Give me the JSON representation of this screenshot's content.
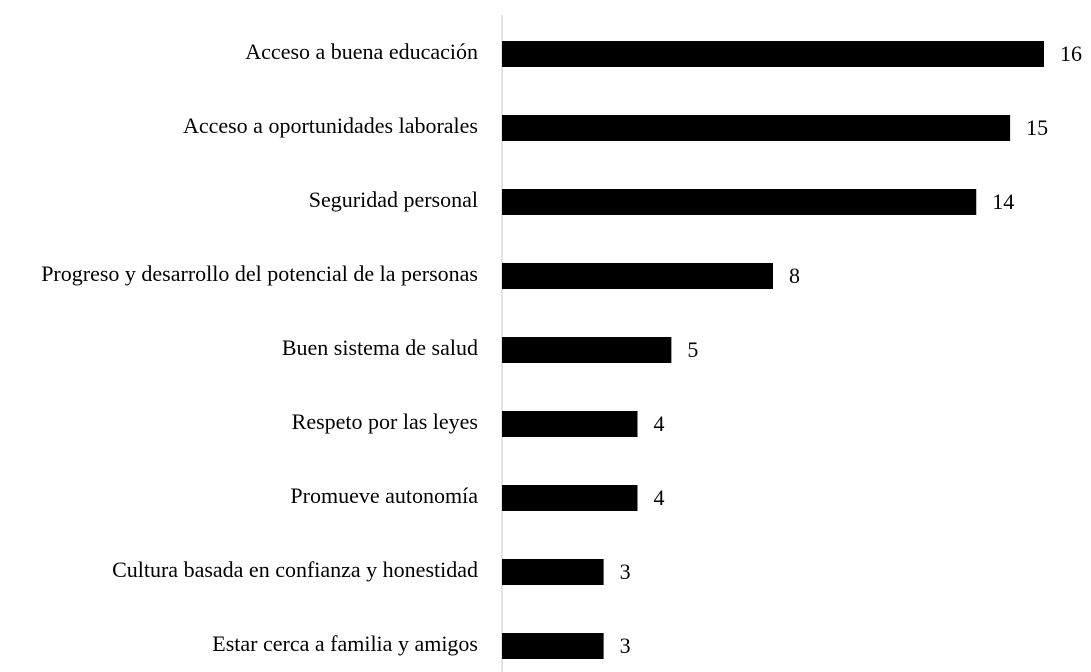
{
  "chart_data": {
    "type": "barh",
    "categories": [
      "Acceso a buena educación",
      "Acceso a oportunidades laborales",
      "Seguridad personal",
      "Progreso y desarrollo del potencial de la personas",
      "Buen sistema de salud",
      "Respeto por las leyes",
      "Promueve autonomía",
      "Cultura basada en confianza y honestidad",
      "Estar cerca a familia y amigos"
    ],
    "values": [
      16,
      15,
      14,
      8,
      5,
      4,
      4,
      3,
      3
    ],
    "color": "#000000",
    "xlim": [
      0,
      16
    ]
  }
}
